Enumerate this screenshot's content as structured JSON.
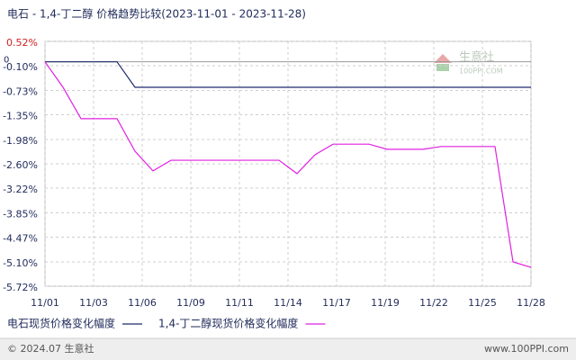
{
  "chart_data": {
    "type": "line",
    "title": "电石 - 1,4-丁二醇 价格趋势比较(2023-11-01 - 2023-11-28)",
    "x": [
      1,
      2,
      3,
      4,
      5,
      6,
      7,
      8,
      9,
      10,
      11,
      12,
      13,
      14,
      15,
      16,
      17,
      18,
      19,
      20,
      21,
      22,
      23,
      24,
      25,
      26,
      27,
      28
    ],
    "xlim": [
      1,
      28
    ],
    "xticks": [
      {
        "value": 1,
        "label": "11/01"
      },
      {
        "value": 3.7,
        "label": "11/03"
      },
      {
        "value": 6.4,
        "label": "11/06"
      },
      {
        "value": 9.1,
        "label": "11/09"
      },
      {
        "value": 11.8,
        "label": "11/11"
      },
      {
        "value": 14.5,
        "label": "11/14"
      },
      {
        "value": 17.2,
        "label": "11/17"
      },
      {
        "value": 19.9,
        "label": "11/19"
      },
      {
        "value": 22.6,
        "label": "11/22"
      },
      {
        "value": 25.3,
        "label": "11/25"
      },
      {
        "value": 28,
        "label": "11/28"
      }
    ],
    "ylim": [
      -5.72,
      0.52
    ],
    "yticks": [
      {
        "value": 0.52,
        "label": "0.52%"
      },
      {
        "value": -0.1,
        "label": "-0.10%"
      },
      {
        "value": -0.73,
        "label": "-0.73%"
      },
      {
        "value": -1.35,
        "label": "-1.35%"
      },
      {
        "value": -1.98,
        "label": "-1.98%"
      },
      {
        "value": -2.6,
        "label": "-2.60%"
      },
      {
        "value": -3.22,
        "label": "-3.22%"
      },
      {
        "value": -3.85,
        "label": "-3.85%"
      },
      {
        "value": -4.47,
        "label": "-4.47%"
      },
      {
        "value": -5.1,
        "label": "-5.10%"
      },
      {
        "value": -5.72,
        "label": "-5.72%"
      }
    ],
    "baseline": 0,
    "grid": true,
    "series": [
      {
        "name": "电石现货价格变化幅度",
        "color": "#1f2a6e",
        "values": [
          0,
          0,
          0,
          0,
          0,
          -0.65,
          -0.65,
          -0.65,
          -0.65,
          -0.65,
          -0.65,
          -0.65,
          -0.65,
          -0.65,
          -0.65,
          -0.65,
          -0.65,
          -0.65,
          -0.65,
          -0.65,
          -0.65,
          -0.65,
          -0.65,
          -0.65,
          -0.65,
          -0.65,
          -0.65,
          -0.65
        ]
      },
      {
        "name": "1,4-丁二醇现货价格变化幅度",
        "color": "#e020e0",
        "values": [
          0,
          -0.65,
          -1.45,
          -1.45,
          -1.45,
          -2.28,
          -2.78,
          -2.51,
          -2.51,
          -2.51,
          -2.51,
          -2.51,
          -2.51,
          -2.51,
          -2.85,
          -2.37,
          -2.1,
          -2.1,
          -2.1,
          -2.23,
          -2.23,
          -2.23,
          -2.16,
          -2.16,
          -2.16,
          -2.16,
          -5.1,
          -5.24
        ]
      }
    ],
    "watermark": {
      "name": "生意社",
      "site": "100PPI.COM"
    },
    "footer": {
      "left": "© 2024.07 生意社",
      "right": "www.100PPI.com"
    }
  }
}
